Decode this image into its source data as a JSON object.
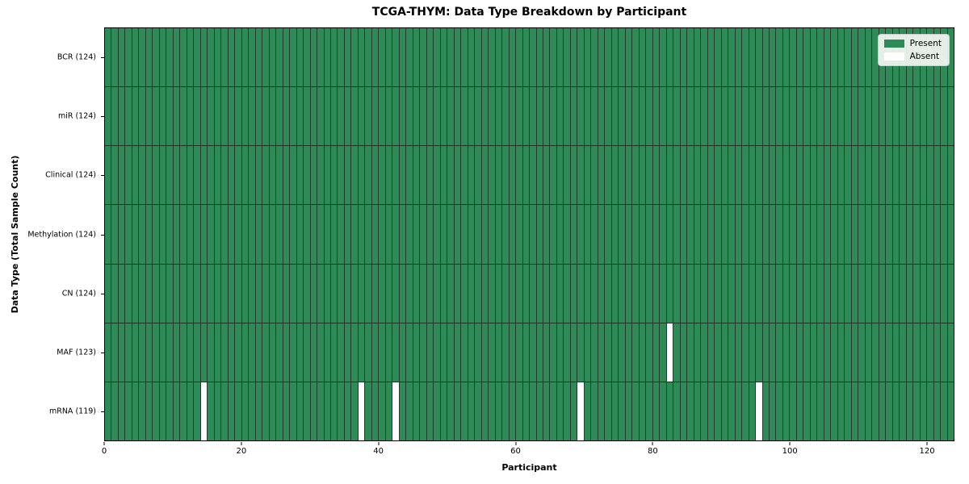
{
  "chart_data": {
    "type": "heatmap",
    "title": "TCGA-THYM: Data Type Breakdown by Participant",
    "xlabel": "Participant",
    "ylabel": "Data Type (Total Sample Count)",
    "xlim": [
      0,
      124
    ],
    "x_ticks": [
      0,
      20,
      40,
      60,
      80,
      100,
      120
    ],
    "n_participants": 124,
    "grid": "off",
    "legend_position": "upper right",
    "rows": [
      {
        "label": "BCR (124)",
        "data_type": "BCR",
        "total": 124,
        "absent_participants": []
      },
      {
        "label": "miR (124)",
        "data_type": "miR",
        "total": 124,
        "absent_participants": []
      },
      {
        "label": "Clinical (124)",
        "data_type": "Clinical",
        "total": 124,
        "absent_participants": []
      },
      {
        "label": "Methylation (124)",
        "data_type": "Methylation",
        "total": 124,
        "absent_participants": []
      },
      {
        "label": "CN (124)",
        "data_type": "CN",
        "total": 124,
        "absent_participants": []
      },
      {
        "label": "MAF (123)",
        "data_type": "MAF",
        "total": 123,
        "absent_participants": [
          82
        ]
      },
      {
        "label": "mRNA (119)",
        "data_type": "mRNA",
        "total": 119,
        "absent_participants": [
          14,
          37,
          42,
          69,
          95
        ]
      }
    ],
    "legend": [
      {
        "label": "Present",
        "color": "#2e8b57"
      },
      {
        "label": "Absent",
        "color": "#ffffff"
      }
    ],
    "colors": {
      "present": "#2e8b57",
      "absent": "#ffffff",
      "cell_edge": "#243c2d",
      "axis": "#000000"
    }
  }
}
